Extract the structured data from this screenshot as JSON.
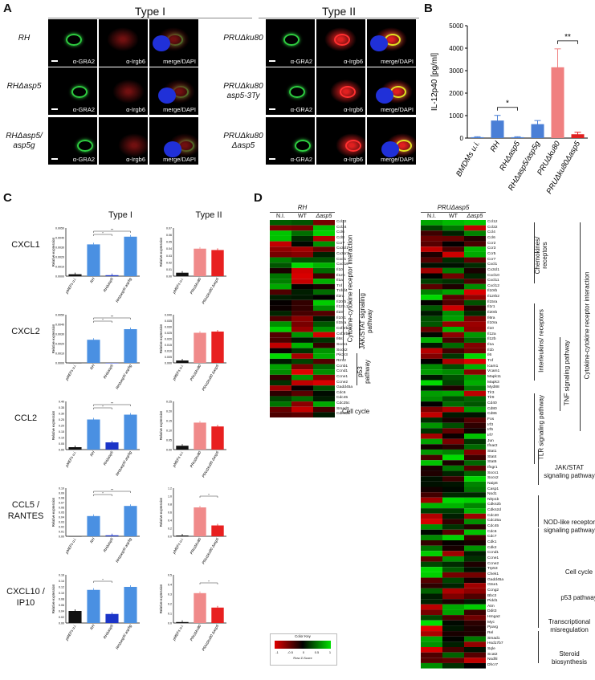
{
  "panel_labels": {
    "a": "A",
    "b": "B",
    "c": "C",
    "d": "D"
  },
  "panelA": {
    "type1_title": "Type I",
    "type2_title": "Type II",
    "type1_rows": [
      {
        "strain": "RH",
        "channels": [
          "α-GRA2",
          "α-Irgb6",
          "merge/DAPI"
        ]
      },
      {
        "strain": "RHΔasp5",
        "channels": [
          "α-GRA2",
          "α-Irgb6",
          "merge/DAPI"
        ]
      },
      {
        "strain": "RHΔasp5/ asp5g",
        "channels": [
          "α-GRA2",
          "α-Irgb6",
          "merge/DAPI"
        ]
      }
    ],
    "type2_rows": [
      {
        "strain": "PRUΔku80",
        "channels": [
          "α-GRA2",
          "α-Irgb6",
          "merge/DAPI"
        ]
      },
      {
        "strain": "PRUΔku80 asp5-3Ty",
        "channels": [
          "α-GRA2",
          "α-Irgb6",
          "merge/DAPI"
        ]
      },
      {
        "strain": "PRUΔku80 Δasp5",
        "channels": [
          "α-GRA2",
          "α-Irgb6",
          "merge/DAPI"
        ]
      }
    ]
  },
  "chart_data": [
    {
      "id": "B",
      "type": "bar",
      "ylabel": "IL-12p40 [pg/ml]",
      "ylim": [
        0,
        5000
      ],
      "yticks": [
        0,
        1000,
        2000,
        3000,
        4000,
        5000
      ],
      "categories": [
        "BMDMs u.i.",
        "RH",
        "RHΔasp5",
        "RHΔasp5/asp5g",
        "PRUΔku80",
        "PRUΔku80Δasp5"
      ],
      "values": [
        40,
        780,
        40,
        620,
        3150,
        170
      ],
      "errors": [
        20,
        230,
        20,
        160,
        820,
        90
      ],
      "colors": [
        "#4a7fd6",
        "#4a7fd6",
        "#4a7fd6",
        "#4a7fd6",
        "#f08080",
        "#e02020"
      ],
      "significance": [
        {
          "pair": [
            1,
            2
          ],
          "label": "*"
        },
        {
          "pair": [
            4,
            5
          ],
          "label": "**"
        }
      ]
    },
    {
      "id": "C",
      "type": "bar",
      "column_titles": [
        "Type I",
        "Type II"
      ],
      "ylabel": "Relative expression",
      "type1_categories": [
        "pMEFs u.i.",
        "RH",
        "RHΔasp5",
        "RHΔasp5/ asp5g"
      ],
      "type2_categories": [
        "pMEFs u.i.",
        "PRUΔku80",
        "PRUΔku80 Δasp5"
      ],
      "type1_colors": [
        "#111111",
        "#4a90e2",
        "#1b35c8",
        "#4a90e2"
      ],
      "type2_colors": [
        "#111111",
        "#f08a8a",
        "#e82020"
      ],
      "genes": [
        {
          "name": "CXCL1",
          "t1_values": [
            0.0002,
            0.0033,
            0.0001,
            0.0041
          ],
          "t1_yticks": [
            "0.0000",
            "0.0010",
            "0.0020",
            "0.0030",
            "0.0040",
            "0.0050"
          ],
          "t1_max": 0.005,
          "t2_values": [
            0.005,
            0.04,
            0.038
          ],
          "t2_yticks": [
            "0.00",
            "0.01",
            "0.02",
            "0.03",
            "0.04",
            "0.05",
            "0.06",
            "0.07"
          ],
          "t2_max": 0.07,
          "t1_sig": [
            "*",
            "**"
          ],
          "t2_sig": []
        },
        {
          "name": "CXCL2",
          "t1_values": [
            0.0,
            0.0024,
            0.0,
            0.0035
          ],
          "t1_yticks": [
            "0.0000",
            "0.0010",
            "0.0020",
            "0.0030",
            "0.0040",
            "0.0050"
          ],
          "t1_max": 0.005,
          "t2_values": [
            0.002,
            0.025,
            0.026
          ],
          "t2_yticks": [
            "0.000",
            "0.005",
            "0.010",
            "0.015",
            "0.020",
            "0.025",
            "0.030",
            "0.035",
            "0.040"
          ],
          "t2_max": 0.04,
          "t1_sig": [
            "*",
            "**"
          ],
          "t2_sig": []
        },
        {
          "name": "CCL2",
          "t1_values": [
            0.02,
            0.25,
            0.06,
            0.29
          ],
          "t1_yticks": [
            "0.00",
            "0.05",
            "0.10",
            "0.15",
            "0.20",
            "0.25",
            "0.30",
            "0.35",
            "0.40"
          ],
          "t1_max": 0.4,
          "t2_values": [
            0.02,
            0.14,
            0.12
          ],
          "t2_yticks": [
            "0.00",
            "0.05",
            "0.10",
            "0.15",
            "0.20",
            "0.25"
          ],
          "t2_max": 0.25,
          "t1_sig": [
            "*",
            "**"
          ],
          "t2_sig": []
        },
        {
          "name": "CCL5 / RANTES",
          "t1_values": [
            0.0,
            0.042,
            0.002,
            0.063
          ],
          "t1_yticks": [
            "0.00",
            "0.01",
            "0.02",
            "0.03",
            "0.04",
            "0.05",
            "0.06",
            "0.07",
            "0.08",
            "0.09",
            "0.10"
          ],
          "t1_max": 0.1,
          "t2_values": [
            0.02,
            0.72,
            0.27
          ],
          "t2_yticks": [
            "0.0",
            "0.2",
            "0.4",
            "0.6",
            "0.8",
            "1.0",
            "1.2"
          ],
          "t2_max": 1.2,
          "t1_sig": [
            "*",
            "**"
          ],
          "t2_sig": [
            "*"
          ]
        },
        {
          "name": "CXCL10 / IP10",
          "t1_values": [
            0.04,
            0.11,
            0.03,
            0.12
          ],
          "t1_yticks": [
            "0.00",
            "0.02",
            "0.04",
            "0.06",
            "0.08",
            "0.10",
            "0.12",
            "0.14",
            "0.16"
          ],
          "t1_max": 0.16,
          "t2_values": [
            0.01,
            0.31,
            0.16
          ],
          "t2_yticks": [
            "0.0",
            "0.1",
            "0.2",
            "0.3",
            "0.4",
            "0.5"
          ],
          "t2_max": 0.5,
          "t1_sig": [
            "*"
          ],
          "t2_sig": [
            "*"
          ]
        }
      ]
    },
    {
      "id": "D",
      "type": "heatmap",
      "left": {
        "title": "RH",
        "columns": [
          "N.I.",
          "WT",
          "Δasp5"
        ],
        "genes": [
          "Ccl22",
          "Ccl24",
          "Ccl6",
          "Ccl8",
          "Ccr7",
          "Cx3cl1",
          "Cx3cr1",
          "Cxcl1",
          "Cxcl10",
          "Il10",
          "Il12b",
          "Il1a",
          "Tnf",
          "Tnfsf4",
          "Il2ra",
          "Il20rb",
          "Il12b.1",
          "Il23r",
          "Il10.1",
          "Il15ra",
          "Csf2rb",
          "Csf2rb2",
          "Il6st",
          "Socs1",
          "Socs2",
          "Pik3r3",
          "Rrm2",
          "Ccnb1",
          "Ccnd1",
          "Ccne1",
          "Ccne2",
          "Gadd45a",
          "Cdc6",
          "Cdc45",
          "Cdc25c",
          "Smad3",
          "Cdkn2b"
        ],
        "groups": [
          "Cytokine-cytokine receptor interaction",
          "JAK/STAT signaling pathway",
          "p53 pathway",
          "Cell cycle"
        ]
      },
      "right": {
        "title": "PRUΔasp5",
        "columns": [
          "N.I.",
          "WT",
          "Δasp5"
        ],
        "genes": [
          "Ccl12",
          "Ccl22",
          "Ccl4",
          "Ccl6",
          "Ccr2",
          "Ccr3",
          "Ccr5",
          "Ccr7",
          "Cxcl1",
          "Cx3cl1",
          "Cxcl10",
          "Cxcl11",
          "Cxcl12",
          "Il10rb",
          "Il12rb2",
          "Il15ra",
          "Il1r1",
          "Il20rb",
          "Il6ra",
          "Il10ra",
          "Il10",
          "Il12a",
          "Il12b",
          "Il1a",
          "Il1b",
          "Il6",
          "Tnf",
          "Icam1",
          "Vcam1",
          "Mapk11",
          "Mapk3",
          "Myd88",
          "Tlr3",
          "Tlr9",
          "Cd40",
          "Cd80",
          "Cd86",
          "Fos",
          "Irf3",
          "Irf5",
          "Irf7",
          "Jun",
          "Ifnar2",
          "Stat1",
          "Stat4",
          "Stat6",
          "Ifngr1",
          "Socs1",
          "Socs2",
          "Naip6",
          "Casp1",
          "Nod1",
          "Nlrp1b",
          "Cdkn2b",
          "Cdkn2d",
          "Cdc20",
          "Cdc25a",
          "Cdc45",
          "Cdc6",
          "Cdc7",
          "Cdk1",
          "Cdk2",
          "Ccnd1",
          "Ccne1",
          "Ccne2",
          "Trp53",
          "Chek1",
          "Gadd45a",
          "Gtse1",
          "Ccng2",
          "Bbc3",
          "Pidd1",
          "Atm",
          "Ddit3",
          "Hmga2",
          "Myc",
          "Pparg",
          "Rel",
          "Smad1",
          "Hsd17b7",
          "Sqle",
          "Scat2",
          "Nsdhl",
          "Dhcr7"
        ],
        "groups": [
          "Chemokines/ receptors",
          "Interleukins/ receptors",
          "TNF signaling pathway",
          "TLR signaling pathway",
          "Cytokine-cytokine receptor interaction",
          "JAK/STAT signaling pathway",
          "NOD-like receptor signaling pathway",
          "Cell cycle",
          "p53 pathway",
          "Transcriptional misregulation",
          "Steroid biosynthesis"
        ]
      },
      "color_key": {
        "title": "Color Key",
        "xlabel": "Row Z-Score",
        "ticks": [
          "-1",
          "-0.5",
          "0",
          "0.5",
          "1"
        ],
        "low": "#e00000",
        "mid": "#000000",
        "high": "#00e000"
      }
    }
  ]
}
